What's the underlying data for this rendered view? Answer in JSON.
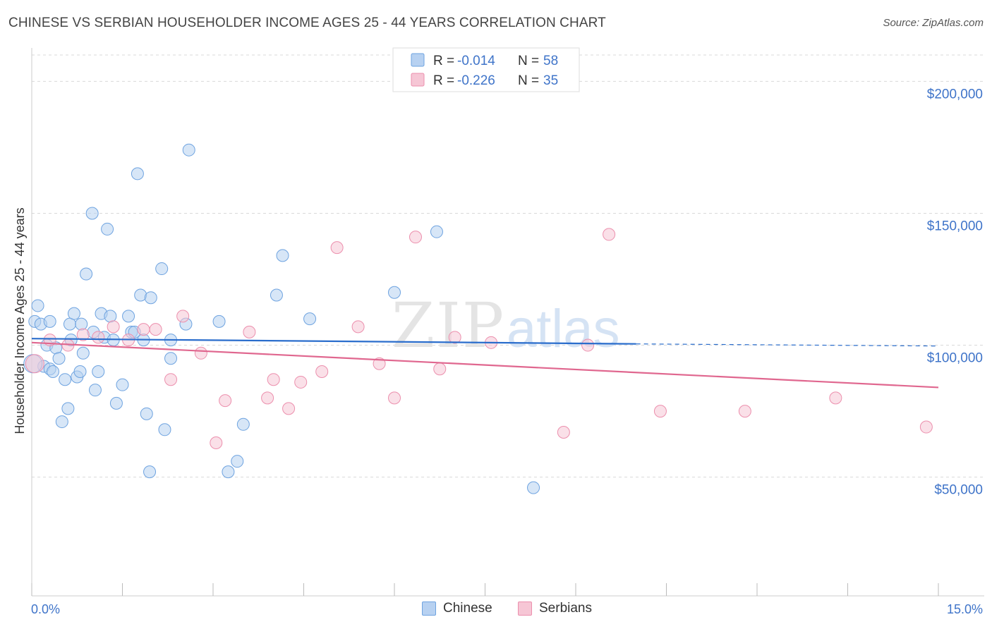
{
  "header": {
    "title": "CHINESE VS SERBIAN HOUSEHOLDER INCOME AGES 25 - 44 YEARS CORRELATION CHART",
    "source": "Source: ZipAtlas.com"
  },
  "colors": {
    "chinese": "#6ea3e0",
    "chinese_fill": "#b7d1f1",
    "chinese_line": "#2a6dcc",
    "serbians": "#ec8fad",
    "serbians_fill": "#f6c6d5",
    "serbians_line": "#e0678f",
    "axis_text": "#3f74c9",
    "grid": "#d9d9d9"
  },
  "legend": {
    "rows": [
      {
        "r_label": "R = ",
        "r_value": "-0.014",
        "n_label": "N = ",
        "n_value": "58"
      },
      {
        "r_label": "R = ",
        "r_value": "-0.226",
        "n_label": "N = ",
        "n_value": "35"
      }
    ]
  },
  "bottom_legend": {
    "chinese": "Chinese",
    "serbians": "Serbians"
  },
  "chart_data": {
    "type": "scatter",
    "title": "CHINESE VS SERBIAN HOUSEHOLDER INCOME AGES 25 - 44 YEARS CORRELATION CHART",
    "xlabel": "",
    "ylabel": "Householder Income Ages 25 - 44 years",
    "xlim": [
      0,
      15
    ],
    "ylim": [
      5000,
      210000
    ],
    "x_tick_labels": [
      "0.0%",
      "15.0%"
    ],
    "y_ticks": [
      {
        "value": 50000,
        "label": "$50,000"
      },
      {
        "value": 100000,
        "label": "$100,000"
      },
      {
        "value": 150000,
        "label": "$150,000"
      },
      {
        "value": 200000,
        "label": "$200,000"
      }
    ],
    "watermark": "ZIPatlas",
    "series": [
      {
        "name": "Chinese",
        "r": -0.014,
        "n": 58,
        "trend": {
          "x0": 0.0,
          "y0": 102500,
          "x1": 10.0,
          "y1": 100500,
          "dash_to_x": 15.0,
          "dash_to_y": 99700
        },
        "points": [
          [
            0.05,
            109000
          ],
          [
            0.1,
            115000
          ],
          [
            0.15,
            108000
          ],
          [
            0.2,
            92000
          ],
          [
            0.25,
            100000
          ],
          [
            0.3,
            109000
          ],
          [
            0.3,
            91000
          ],
          [
            0.35,
            90000
          ],
          [
            0.4,
            99000
          ],
          [
            0.45,
            95000
          ],
          [
            0.5,
            71000
          ],
          [
            0.55,
            87000
          ],
          [
            0.6,
            76000
          ],
          [
            0.63,
            108000
          ],
          [
            0.65,
            102000
          ],
          [
            0.7,
            112000
          ],
          [
            0.75,
            88000
          ],
          [
            0.8,
            90000
          ],
          [
            0.82,
            108000
          ],
          [
            0.85,
            97000
          ],
          [
            0.9,
            127000
          ],
          [
            1.0,
            150000
          ],
          [
            1.02,
            105000
          ],
          [
            1.05,
            83000
          ],
          [
            1.1,
            90000
          ],
          [
            1.15,
            112000
          ],
          [
            1.2,
            103000
          ],
          [
            1.25,
            144000
          ],
          [
            1.3,
            111000
          ],
          [
            1.35,
            102000
          ],
          [
            1.4,
            78000
          ],
          [
            1.5,
            85000
          ],
          [
            1.6,
            111000
          ],
          [
            1.65,
            105000
          ],
          [
            1.7,
            105000
          ],
          [
            1.75,
            165000
          ],
          [
            1.8,
            119000
          ],
          [
            1.85,
            102000
          ],
          [
            1.9,
            74000
          ],
          [
            1.95,
            52000
          ],
          [
            1.97,
            118000
          ],
          [
            2.15,
            129000
          ],
          [
            2.2,
            68000
          ],
          [
            2.3,
            102000
          ],
          [
            2.3,
            95000
          ],
          [
            2.55,
            108000
          ],
          [
            2.6,
            174000
          ],
          [
            3.1,
            109000
          ],
          [
            3.25,
            52000
          ],
          [
            3.4,
            56000
          ],
          [
            3.5,
            70000
          ],
          [
            4.05,
            119000
          ],
          [
            4.15,
            134000
          ],
          [
            4.6,
            110000
          ],
          [
            6.0,
            120000
          ],
          [
            6.7,
            143000
          ],
          [
            8.3,
            46000
          ],
          [
            0.02,
            93000
          ]
        ]
      },
      {
        "name": "Serbians",
        "r": -0.226,
        "n": 35,
        "trend": {
          "x0": 0.0,
          "y0": 101000,
          "x1": 15.0,
          "y1": 84000
        },
        "points": [
          [
            0.05,
            93000
          ],
          [
            0.3,
            102000
          ],
          [
            0.6,
            100000
          ],
          [
            0.85,
            104000
          ],
          [
            1.1,
            103000
          ],
          [
            1.35,
            107000
          ],
          [
            1.6,
            102000
          ],
          [
            1.85,
            106000
          ],
          [
            2.05,
            106000
          ],
          [
            2.3,
            87000
          ],
          [
            2.5,
            111000
          ],
          [
            2.8,
            97000
          ],
          [
            3.2,
            79000
          ],
          [
            3.05,
            63000
          ],
          [
            3.6,
            105000
          ],
          [
            3.9,
            80000
          ],
          [
            4.0,
            87000
          ],
          [
            4.25,
            76000
          ],
          [
            4.45,
            86000
          ],
          [
            4.8,
            90000
          ],
          [
            5.05,
            137000
          ],
          [
            5.4,
            107000
          ],
          [
            5.75,
            93000
          ],
          [
            6.0,
            80000
          ],
          [
            6.35,
            141000
          ],
          [
            6.75,
            91000
          ],
          [
            7.0,
            103000
          ],
          [
            7.6,
            101000
          ],
          [
            8.8,
            67000
          ],
          [
            9.2,
            100000
          ],
          [
            9.55,
            142000
          ],
          [
            10.4,
            75000
          ],
          [
            11.8,
            75000
          ],
          [
            13.3,
            80000
          ],
          [
            14.8,
            69000
          ]
        ]
      }
    ]
  }
}
